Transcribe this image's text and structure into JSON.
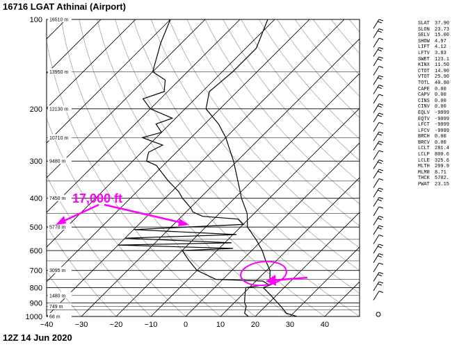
{
  "title": "16716 LGAT Athinai (Airport)",
  "footer": "12Z 14 Jun 2020",
  "annotation": {
    "text": "17,000 ft",
    "color": "#ff00ff"
  },
  "indices": [
    {
      "k": "SLAT",
      "v": "37.90"
    },
    {
      "k": "SLON",
      "v": "23.73"
    },
    {
      "k": "SELV",
      "v": "15.00"
    },
    {
      "k": "SHOW",
      "v": "4.97"
    },
    {
      "k": "LIFT",
      "v": "4.12"
    },
    {
      "k": "LFTV",
      "v": "3.83"
    },
    {
      "k": "SWET",
      "v": "123.1"
    },
    {
      "k": "KINX",
      "v": "11.50"
    },
    {
      "k": "CTOT",
      "v": "14.90"
    },
    {
      "k": "VTOT",
      "v": "25.90"
    },
    {
      "k": "TOTL",
      "v": "40.80"
    },
    {
      "k": "CAPE",
      "v": "0.00"
    },
    {
      "k": "CAPV",
      "v": "0.00"
    },
    {
      "k": "CINS",
      "v": "0.00"
    },
    {
      "k": "CINV",
      "v": "0.00"
    },
    {
      "k": "EQLV",
      "v": "-9999"
    },
    {
      "k": "EQTV",
      "v": "-9999"
    },
    {
      "k": "LFCT",
      "v": "-9999"
    },
    {
      "k": "LFCV",
      "v": "-9999"
    },
    {
      "k": "BRCH",
      "v": "0.00"
    },
    {
      "k": "BRCV",
      "v": "0.00"
    },
    {
      "k": "LCLT",
      "v": "281.4"
    },
    {
      "k": "LCLP",
      "v": "800.6"
    },
    {
      "k": "LCLE",
      "v": "325.6"
    },
    {
      "k": "MLTH",
      "v": "299.9"
    },
    {
      "k": "MLMR",
      "v": "8.71"
    },
    {
      "k": "THCK",
      "v": "5702."
    },
    {
      "k": "PWAT",
      "v": "23.15"
    }
  ],
  "chart_data": {
    "type": "line",
    "chart_kind": "skew-T log-P sounding",
    "pressure_levels": [
      100,
      200,
      300,
      400,
      500,
      600,
      700,
      800,
      900,
      1000
    ],
    "x_ticks": [
      -40,
      -30,
      -20,
      -10,
      0,
      10,
      20,
      30,
      40
    ],
    "xlim": [
      -40,
      50
    ],
    "ylim": [
      100,
      1000
    ],
    "y_scale": "log",
    "height_labels": [
      {
        "p": 100,
        "text": "16510 m"
      },
      {
        "p": 150,
        "text": "13950 m"
      },
      {
        "p": 200,
        "text": "12130 m"
      },
      {
        "p": 250,
        "text": "10710 m"
      },
      {
        "p": 300,
        "text": "9480 m"
      },
      {
        "p": 400,
        "text": "7450 m"
      },
      {
        "p": 500,
        "text": "5770 m"
      },
      {
        "p": 700,
        "text": "3095 m"
      },
      {
        "p": 850,
        "text": "1480 m"
      },
      {
        "p": 925,
        "text": "749 m"
      },
      {
        "p": 1000,
        "text": "68 m"
      }
    ],
    "temperature": [
      [
        1000,
        32
      ],
      [
        975,
        28
      ],
      [
        925,
        24.5
      ],
      [
        900,
        22.5
      ],
      [
        850,
        18.5
      ],
      [
        800,
        14
      ],
      [
        780,
        15.5
      ],
      [
        750,
        13.5
      ],
      [
        700,
        11
      ],
      [
        650,
        7
      ],
      [
        600,
        3
      ],
      [
        550,
        -2
      ],
      [
        500,
        -8
      ],
      [
        450,
        -12
      ],
      [
        400,
        -18
      ],
      [
        350,
        -24
      ],
      [
        300,
        -31
      ],
      [
        250,
        -40
      ],
      [
        225,
        -46
      ],
      [
        200,
        -54
      ],
      [
        175,
        -58
      ],
      [
        150,
        -57
      ],
      [
        125,
        -57
      ],
      [
        100,
        -62
      ]
    ],
    "dewpoint": [
      [
        1000,
        18
      ],
      [
        975,
        16
      ],
      [
        925,
        14.5
      ],
      [
        900,
        13
      ],
      [
        850,
        11
      ],
      [
        800,
        9
      ],
      [
        780,
        14.5
      ],
      [
        760,
        12
      ],
      [
        750,
        -2
      ],
      [
        700,
        -10
      ],
      [
        650,
        -15
      ],
      [
        600,
        -20
      ],
      [
        590,
        -6
      ],
      [
        575,
        -40
      ],
      [
        565,
        -8
      ],
      [
        545,
        -40
      ],
      [
        530,
        -9
      ],
      [
        510,
        -40
      ],
      [
        490,
        -10
      ],
      [
        470,
        -13
      ],
      [
        460,
        -24
      ],
      [
        445,
        -28
      ],
      [
        430,
        -30
      ],
      [
        400,
        -35
      ],
      [
        380,
        -38
      ],
      [
        350,
        -44
      ],
      [
        310,
        -52
      ],
      [
        300,
        -56
      ],
      [
        280,
        -58
      ],
      [
        265,
        -56
      ],
      [
        250,
        -64
      ],
      [
        240,
        -60
      ],
      [
        225,
        -64
      ],
      [
        215,
        -61
      ],
      [
        200,
        -70
      ],
      [
        185,
        -75
      ],
      [
        175,
        -71
      ],
      [
        160,
        -74
      ],
      [
        150,
        -80
      ],
      [
        120,
        -86
      ],
      [
        100,
        -90
      ]
    ],
    "wind_barbs_count": 30
  }
}
